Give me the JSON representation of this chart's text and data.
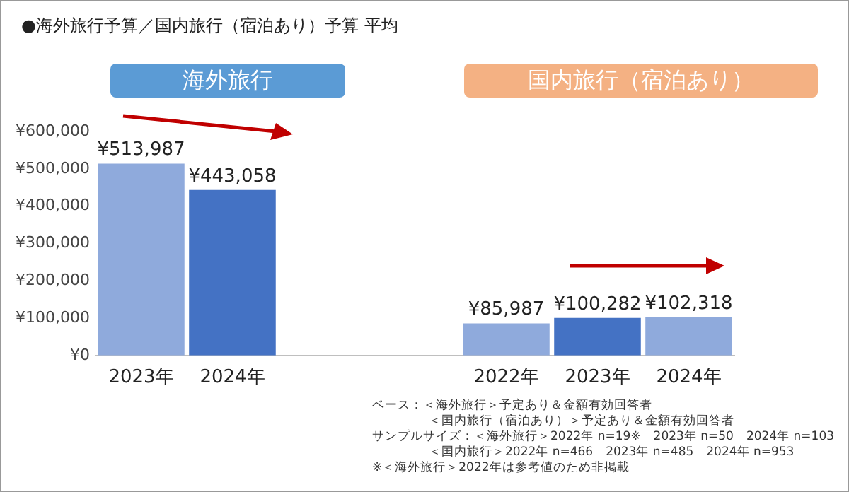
{
  "chart_data": {
    "type": "bar",
    "title": "●海外旅行予算／国内旅行（宿泊あり）予算 平均",
    "categories": [
      "2023年",
      "2024年",
      null,
      null,
      "2022年",
      "2023年",
      "2024年"
    ],
    "values": [
      513987,
      443058,
      null,
      null,
      85987,
      100282,
      102318
    ],
    "colors": [
      "#8faadc",
      "#4472c4",
      null,
      null,
      "#8faadc",
      "#4472c4",
      "#8faadc"
    ],
    "value_labels": [
      "¥513,987",
      "¥443,058",
      null,
      null,
      "¥85,987",
      "¥100,282",
      "¥102,318"
    ],
    "ylim": [
      0,
      600000
    ],
    "yticks": [
      {
        "value": 0,
        "label": "¥0"
      },
      {
        "value": 100000,
        "label": "¥100,000"
      },
      {
        "value": 200000,
        "label": "¥200,000"
      },
      {
        "value": 300000,
        "label": "¥300,000"
      },
      {
        "value": 400000,
        "label": "¥400,000"
      },
      {
        "value": 500000,
        "label": "¥500,000"
      },
      {
        "value": 600000,
        "label": "¥600,000"
      }
    ],
    "grid": false,
    "legend": false,
    "annotations": [
      "海外旅行",
      "国内旅行（宿泊あり）",
      "ベース：＜海外旅行＞予定あり＆金額有効回答者",
      "＜国内旅行（宿泊あり）＞予定あり＆金額有効回答者",
      "サンプルサイズ：＜海外旅行＞2022年 n=19※　2023年 n=50　2024年 n=103",
      "＜国内旅行＞2022年 n=466　2023年 n=485　2024年 n=953",
      "※＜海外旅行＞2022年は参考値のため非掲載"
    ]
  }
}
